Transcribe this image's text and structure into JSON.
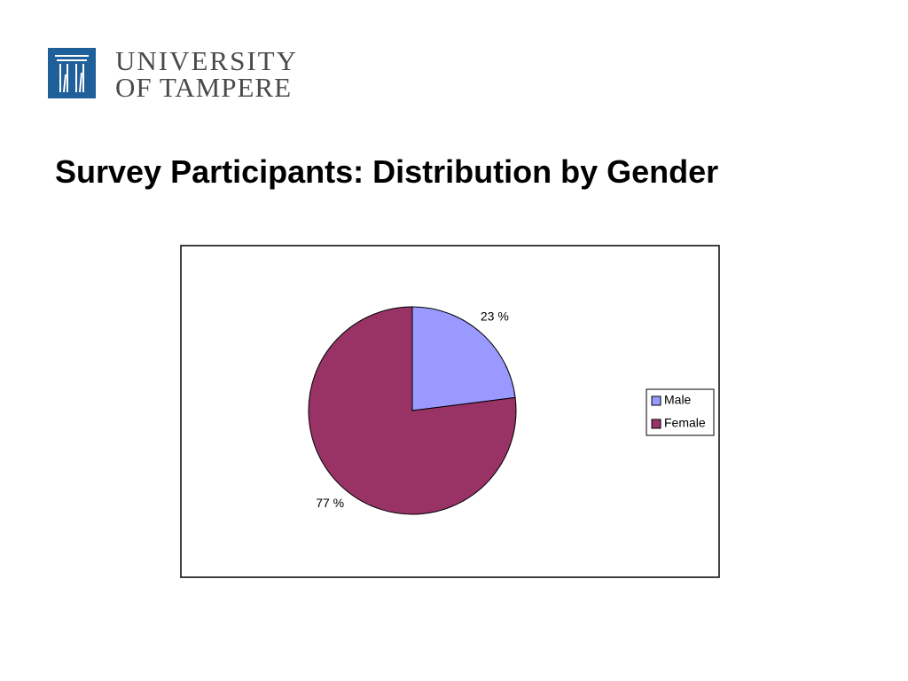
{
  "logo": {
    "line1": "UNIVERSITY",
    "line2": "OF TAMPERE"
  },
  "chart_data": {
    "type": "pie",
    "title": "Survey Participants: Distribution by Gender",
    "categories": [
      "Male",
      "Female"
    ],
    "values": [
      23,
      77
    ],
    "value_labels": [
      "23 %",
      "77 %"
    ],
    "colors": [
      "#9999ff",
      "#993366"
    ],
    "legend": "right"
  }
}
